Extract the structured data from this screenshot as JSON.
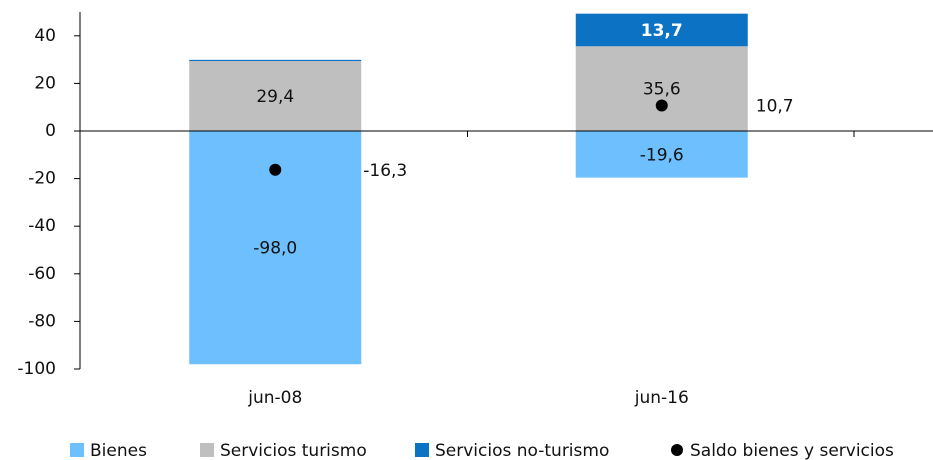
{
  "chart_data": {
    "type": "stacked-bar",
    "categories": [
      "jun-08",
      "jun-16"
    ],
    "series": [
      {
        "name": "Bienes",
        "color": "#6dbffd",
        "values": [
          -98.0,
          -19.6
        ],
        "value_labels": [
          "-98,0",
          "-19,6"
        ]
      },
      {
        "name": "Servicios turismo",
        "color": "#bfbfbf",
        "values": [
          29.4,
          35.6
        ],
        "value_labels": [
          "29,4",
          "35,6"
        ]
      },
      {
        "name": "Servicios no-turismo",
        "color": "#0b72c4",
        "values": [
          0.5,
          13.7
        ],
        "value_labels": [
          null,
          "13,7"
        ]
      },
      {
        "name": "Saldo bienes y servicios",
        "type": "scatter",
        "color": "#000000",
        "values": [
          -16.3,
          10.7
        ],
        "value_labels": [
          "-16,3",
          "10,7"
        ]
      }
    ],
    "ylim": [
      -100,
      50
    ],
    "yticks": [
      -100,
      -80,
      -60,
      -40,
      -20,
      0,
      20,
      40
    ]
  }
}
